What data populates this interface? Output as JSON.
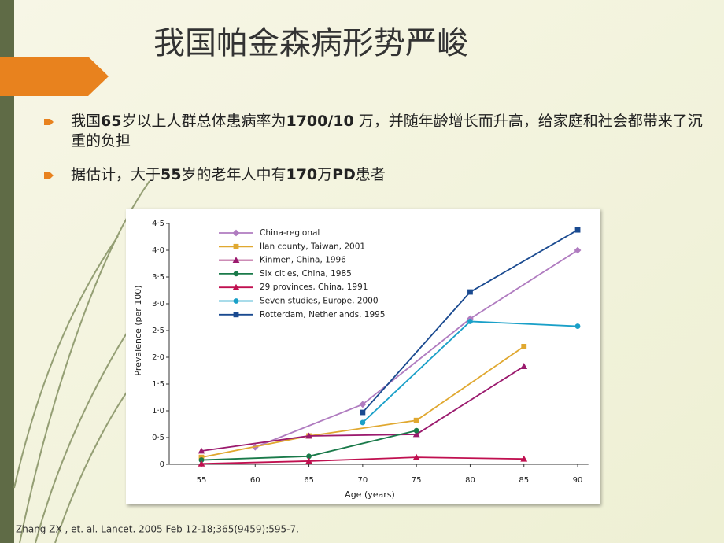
{
  "slide": {
    "title": "我国帕金森病形势严峻",
    "bullets": [
      [
        "我国",
        "65",
        "岁以上人群总体患病率为",
        "1700/10",
        " 万，并随年龄增长而升高，给家庭和社会都带来了沉重的负担"
      ],
      [
        "据估计，大于",
        "55",
        "岁的老年人中有",
        "170",
        "万",
        "PD",
        "患者"
      ]
    ],
    "footnote": "Zhang ZX , et. al. Lancet. 2005 Feb 12-18;365(9459):595-7."
  },
  "chart_data": {
    "type": "line",
    "xlabel": "Age (years)",
    "ylabel": "Prevalence (per 100)",
    "xlim": [
      52,
      91
    ],
    "ylim": [
      0,
      4.5
    ],
    "xticks": [
      55,
      60,
      65,
      70,
      75,
      80,
      85,
      90
    ],
    "yticks": [
      0,
      {
        "value": 0.5,
        "label": "0·5"
      },
      {
        "value": 1,
        "label": "1·0"
      },
      {
        "value": 1.5,
        "label": "1·5"
      },
      {
        "value": 2,
        "label": "2·0"
      },
      {
        "value": 2.5,
        "label": "2·5"
      },
      {
        "value": 3,
        "label": "3·0"
      },
      {
        "value": 3.5,
        "label": "3·5"
      },
      {
        "value": 4,
        "label": "4·0"
      },
      {
        "value": 4.5,
        "label": "4·5"
      }
    ],
    "series": [
      {
        "name": "China-regional",
        "color": "#b07cc0",
        "marker": "diamond",
        "x": [
          60,
          70,
          80,
          90
        ],
        "values": [
          0.32,
          1.12,
          2.72,
          4.0
        ]
      },
      {
        "name": "Ilan county, Taiwan, 2001",
        "color": "#e0a830",
        "marker": "square",
        "x": [
          55,
          65,
          75,
          85
        ],
        "values": [
          0.13,
          0.53,
          0.82,
          2.2
        ]
      },
      {
        "name": "Kinmen, China, 1996",
        "color": "#9b1a6e",
        "marker": "triangle",
        "x": [
          55,
          65,
          75,
          85
        ],
        "values": [
          0.25,
          0.53,
          0.56,
          1.83
        ]
      },
      {
        "name": "Six cities, China, 1985",
        "color": "#1a7a4a",
        "marker": "circle",
        "x": [
          55,
          65,
          75
        ],
        "values": [
          0.08,
          0.15,
          0.63
        ]
      },
      {
        "name": "29 provinces, China, 1991",
        "color": "#c01050",
        "marker": "triangle",
        "x": [
          55,
          65,
          75,
          85
        ],
        "values": [
          0.01,
          0.06,
          0.13,
          0.1
        ]
      },
      {
        "name": "Seven studies, Europe, 2000",
        "color": "#1aa0c8",
        "marker": "circle",
        "x": [
          70,
          80,
          90
        ],
        "values": [
          0.78,
          2.67,
          2.58
        ]
      },
      {
        "name": "Rotterdam, Netherlands, 1995",
        "color": "#1a4a90",
        "marker": "square",
        "x": [
          70,
          80,
          90
        ],
        "values": [
          0.97,
          3.22,
          4.38
        ]
      }
    ]
  }
}
